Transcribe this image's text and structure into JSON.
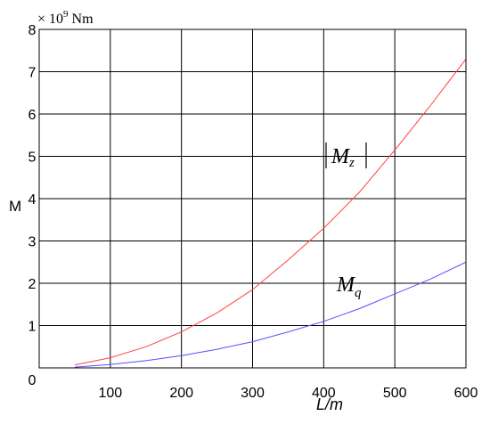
{
  "chart_data": {
    "type": "line",
    "xlabel": "L/m",
    "ylabel": "M",
    "scale_label_prefix": "× 10",
    "scale_label_exponent": "9",
    "scale_label_unit": " Nm",
    "xlim": [
      0,
      600
    ],
    "ylim": [
      0,
      8
    ],
    "x_ticks": [
      "0",
      "100",
      "200",
      "300",
      "400",
      "500",
      "600"
    ],
    "y_ticks": [
      "0",
      "1",
      "2",
      "3",
      "4",
      "5",
      "6",
      "7",
      "8"
    ],
    "grid": true,
    "x": [
      50,
      100,
      150,
      200,
      250,
      300,
      350,
      400,
      450,
      500,
      550,
      600
    ],
    "series": [
      {
        "name": "|M_z|",
        "label_main": "M",
        "label_sub": "z",
        "color": "#ff4040",
        "values": [
          0.07,
          0.24,
          0.5,
          0.85,
          1.3,
          1.85,
          2.55,
          3.3,
          4.15,
          5.15,
          6.2,
          7.3
        ]
      },
      {
        "name": "M_q",
        "label_main": "M",
        "label_sub": "q",
        "color": "#5050ff",
        "values": [
          0.02,
          0.08,
          0.17,
          0.29,
          0.44,
          0.62,
          0.85,
          1.1,
          1.4,
          1.75,
          2.1,
          2.5
        ]
      }
    ]
  }
}
